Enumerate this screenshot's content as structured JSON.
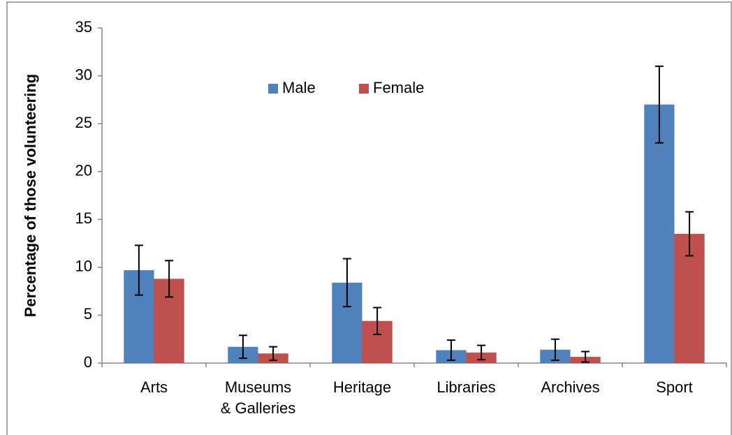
{
  "chart_data": {
    "type": "bar",
    "y_label": "Percentage of those volunteering",
    "categories": [
      "Arts",
      "Museums\n& Galleries",
      "Heritage",
      "Libraries",
      "Archives",
      "Sport"
    ],
    "series": [
      {
        "name": "Male",
        "color": "#4f81bd",
        "values": [
          9.7,
          1.7,
          8.4,
          1.35,
          1.4,
          27.0
        ],
        "errors": [
          2.6,
          1.2,
          2.5,
          1.05,
          1.1,
          4.0
        ]
      },
      {
        "name": "Female",
        "color": "#c0504d",
        "values": [
          8.8,
          1.0,
          4.4,
          1.1,
          0.65,
          13.5
        ],
        "errors": [
          1.9,
          0.7,
          1.4,
          0.75,
          0.55,
          2.3
        ]
      }
    ],
    "ylim": [
      0,
      35
    ],
    "yticks": [
      0,
      5,
      10,
      15,
      20,
      25,
      30,
      35
    ],
    "legend": "top-center"
  }
}
